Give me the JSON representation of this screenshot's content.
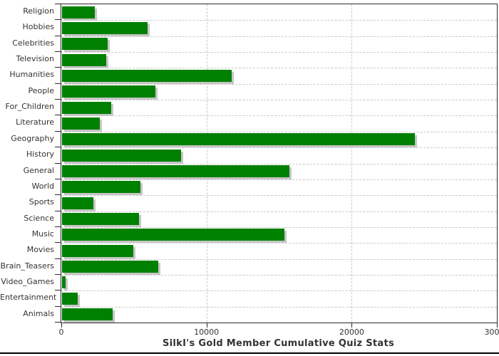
{
  "chart_data": {
    "type": "bar",
    "orientation": "horizontal",
    "title": "SilkI's Gold Member Cumulative Quiz Stats",
    "xlabel": "",
    "ylabel": "",
    "categories": [
      "Religion",
      "Hobbies",
      "Celebrities",
      "Television",
      "Humanities",
      "People",
      "For_Children",
      "Literature",
      "Geography",
      "History",
      "General",
      "World",
      "Sports",
      "Science",
      "Music",
      "Movies",
      "Brain_Teasers",
      "Video_Games",
      "Entertainment",
      "Animals"
    ],
    "values": [
      2250,
      5900,
      3150,
      3050,
      11700,
      6450,
      3400,
      2600,
      24300,
      8200,
      15650,
      5400,
      2150,
      5300,
      15300,
      4900,
      6650,
      250,
      1100,
      3500
    ],
    "xlim": [
      0,
      30000
    ],
    "xticks": [
      0,
      10000,
      20000,
      30000
    ],
    "xtick_labels": [
      "0",
      "10000",
      "20000",
      "30000"
    ],
    "grid": true,
    "legend": "none",
    "bar_color": "#008000",
    "bar_shadow_color": "#c6c6c6",
    "grid_color": "#c9c9c9",
    "axis_color": "#2b2b2b",
    "text_color": "#333333"
  }
}
